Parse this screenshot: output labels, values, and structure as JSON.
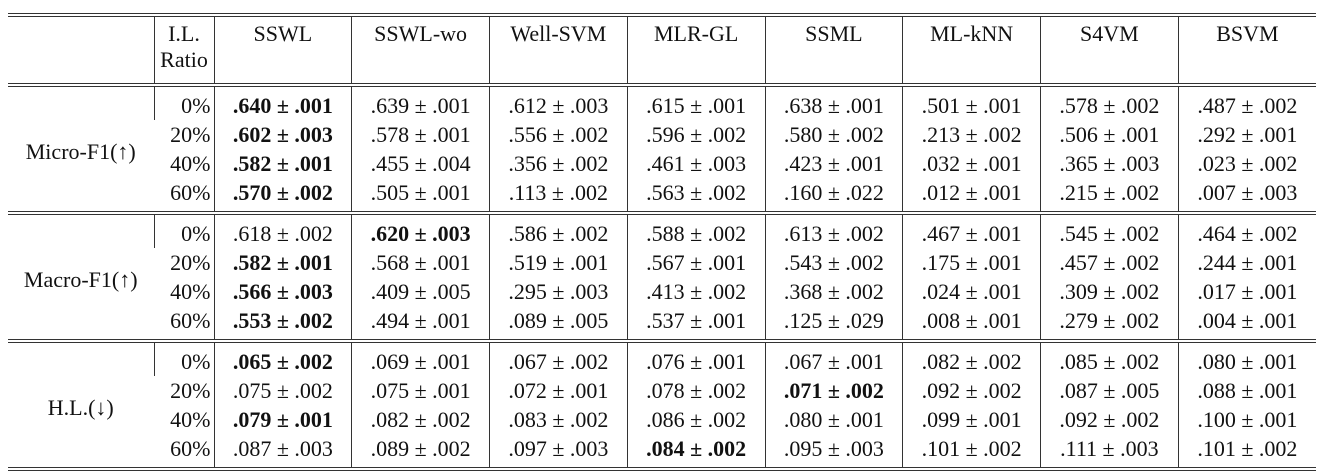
{
  "table": {
    "header": [
      "I.L. Ratio",
      "SSWL",
      "SSWL-wo",
      "Well-SVM",
      "MLR-GL",
      "SSML",
      "ML-kNN",
      "S4VM",
      "BSVM"
    ],
    "groups": [
      {
        "metric": "Micro-F1(↑)",
        "rows": [
          {
            "ratio": "0%",
            "bold": 0,
            "values": [
              ".640 ± .001",
              ".639 ± .001",
              ".612 ± .003",
              ".615 ± .001",
              ".638 ± .001",
              ".501 ± .001",
              ".578 ± .002",
              ".487 ± .002"
            ]
          },
          {
            "ratio": "20%",
            "bold": 0,
            "values": [
              ".602 ± .003",
              ".578 ± .001",
              ".556 ± .002",
              ".596 ± .002",
              ".580 ± .002",
              ".213 ± .002",
              ".506 ± .001",
              ".292 ± .001"
            ]
          },
          {
            "ratio": "40%",
            "bold": 0,
            "values": [
              ".582 ± .001",
              ".455 ± .004",
              ".356 ± .002",
              ".461 ± .003",
              ".423 ± .001",
              ".032 ± .001",
              ".365 ± .003",
              ".023 ± .002"
            ]
          },
          {
            "ratio": "60%",
            "bold": 0,
            "values": [
              ".570 ± .002",
              ".505 ± .001",
              ".113 ± .002",
              ".563 ± .002",
              ".160 ± .022",
              ".012 ± .001",
              ".215 ± .002",
              ".007 ± .003"
            ]
          }
        ]
      },
      {
        "metric": "Macro-F1(↑)",
        "rows": [
          {
            "ratio": "0%",
            "bold": 1,
            "values": [
              ".618 ± .002",
              ".620 ± .003",
              ".586 ± .002",
              ".588 ± .002",
              ".613 ± .002",
              ".467 ± .001",
              ".545 ± .002",
              ".464 ± .002"
            ]
          },
          {
            "ratio": "20%",
            "bold": 0,
            "values": [
              ".582 ± .001",
              ".568 ± .001",
              ".519 ± .001",
              ".567 ± .001",
              ".543 ± .002",
              ".175 ± .001",
              ".457 ± .002",
              ".244 ± .001"
            ]
          },
          {
            "ratio": "40%",
            "bold": 0,
            "values": [
              ".566 ± .003",
              ".409 ± .005",
              ".295 ± .003",
              ".413 ± .002",
              ".368 ± .002",
              ".024 ± .001",
              ".309 ± .002",
              ".017 ± .001"
            ]
          },
          {
            "ratio": "60%",
            "bold": 0,
            "values": [
              ".553 ± .002",
              ".494 ± .001",
              ".089 ± .005",
              ".537 ± .001",
              ".125 ± .029",
              ".008 ± .001",
              ".279 ± .002",
              ".004 ± .001"
            ]
          }
        ]
      },
      {
        "metric": "H.L.(↓)",
        "rows": [
          {
            "ratio": "0%",
            "bold": 0,
            "values": [
              ".065 ± .002",
              ".069 ± .001",
              ".067 ± .002",
              ".076 ± .001",
              ".067 ± .001",
              ".082 ± .002",
              ".085 ± .002",
              ".080 ± .001"
            ]
          },
          {
            "ratio": "20%",
            "bold": 4,
            "values": [
              ".075 ± .002",
              ".075 ± .001",
              ".072 ± .001",
              ".078 ± .002",
              ".071 ± .002",
              ".092 ± .002",
              ".087 ± .005",
              ".088 ± .001"
            ]
          },
          {
            "ratio": "40%",
            "bold": 0,
            "values": [
              ".079 ± .001",
              ".082 ± .002",
              ".083 ± .002",
              ".086 ± .002",
              ".080 ± .001",
              ".099 ± .001",
              ".092 ± .002",
              ".100 ± .001"
            ]
          },
          {
            "ratio": "60%",
            "bold": 3,
            "values": [
              ".087 ± .003",
              ".089 ± .002",
              ".097 ± .003",
              ".084 ± .002",
              ".095 ± .003",
              ".101 ± .002",
              ".111 ± .003",
              ".101 ± .002"
            ]
          }
        ]
      }
    ]
  }
}
